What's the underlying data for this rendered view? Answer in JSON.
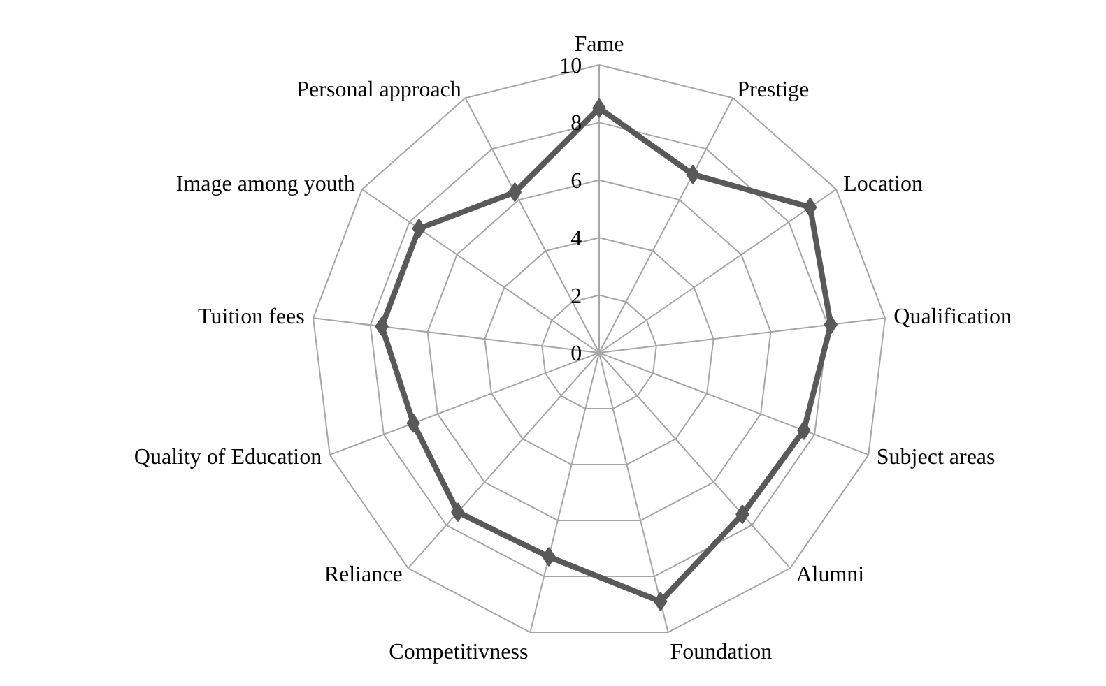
{
  "chart_data": {
    "type": "radar",
    "categories": [
      "Fame",
      "Prestige",
      "Location",
      "Qualification",
      "Subject areas",
      "Alumni",
      "Foundation",
      "Competitivness",
      "Reliance",
      "Quality of Education",
      "Tuition fees",
      "Image among youth",
      "Personal approach"
    ],
    "series": [
      {
        "color": "#595959",
        "values": [
          8.5,
          7.0,
          8.9,
          8.1,
          7.6,
          7.5,
          8.9,
          7.3,
          7.4,
          6.9,
          7.6,
          7.6,
          6.3
        ]
      }
    ],
    "ylim": [
      0,
      10
    ],
    "yticks": [
      0,
      2,
      4,
      6,
      8,
      10
    ],
    "grid": true,
    "marker": "diamond",
    "line_style": "solid"
  }
}
